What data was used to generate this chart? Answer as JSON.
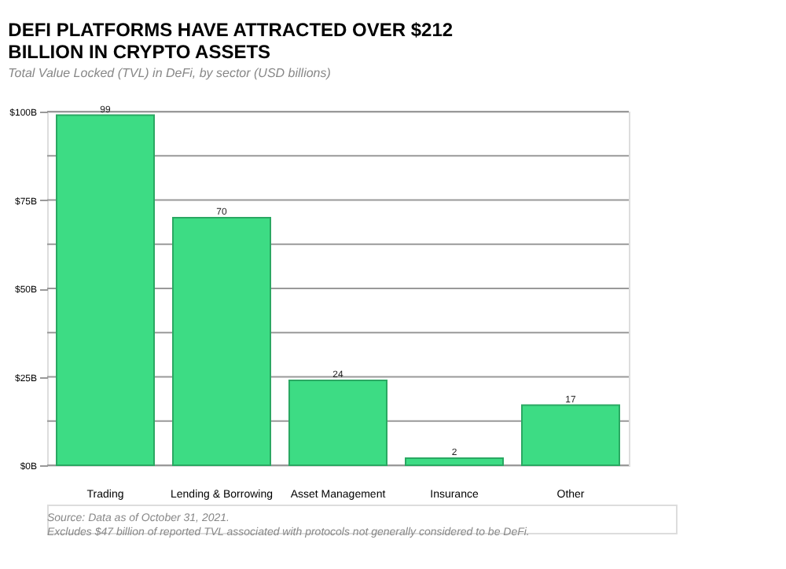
{
  "chart_data": {
    "type": "bar",
    "title": "DEFI PLATFORMS HAVE ATTRACTED OVER $212 BILLION IN CRYPTO ASSETS",
    "subtitle": "Total Value Locked (TVL) in DeFi, by sector (USD billions)",
    "categories": [
      "Trading",
      "Lending & Borrowing",
      "Asset Management",
      "Insurance",
      "Other"
    ],
    "values": [
      99,
      70,
      24,
      2,
      17
    ],
    "color": "#3ddc84",
    "ylim": [
      0,
      100
    ],
    "yticks": [
      {
        "value": 0,
        "label": "$0B"
      },
      {
        "value": 12.5,
        "label": null
      },
      {
        "value": 25,
        "label": "$25B"
      },
      {
        "value": 37.5,
        "label": null
      },
      {
        "value": 50,
        "label": "$50B"
      },
      {
        "value": 62.5,
        "label": null
      },
      {
        "value": 75,
        "label": "$75B"
      },
      {
        "value": 87.5,
        "label": null
      },
      {
        "value": 100,
        "label": "$100B"
      }
    ],
    "grid": "y",
    "data_labels": true,
    "annotations": [
      "Source: Data as of October 31, 2021.",
      "Excludes $47 billion of reported TVL associated with protocols not generally considered to be DeFi."
    ]
  }
}
